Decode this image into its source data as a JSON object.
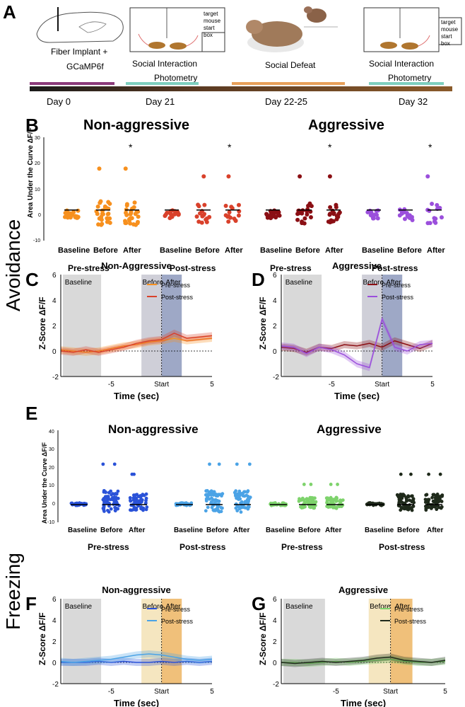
{
  "figure": {
    "panels": {
      "A": "A",
      "B": "B",
      "C": "C",
      "D": "D",
      "E": "E",
      "F": "F",
      "G": "G"
    },
    "side_labels": {
      "avoidance": "Avoidance",
      "freezing": "Freezing"
    },
    "colors": {
      "na_pre": "#f7901e",
      "na_post": "#d9412b",
      "ag_pre": "#8b0f14",
      "ag_post": "#9b4fdc",
      "fz_na_pre": "#2a52d8",
      "fz_na_post": "#4ba3e6",
      "fz_ag_pre": "#7ed36c",
      "fz_ag_post": "#1f2a1b"
    }
  },
  "timeline": {
    "step1": "Fiber Implant +",
    "step1b": "GCaMP6f",
    "step2": "Social Interaction",
    "step2b": "Photometry",
    "step3": "Social Defeat",
    "step4": "Social Interaction",
    "step4b": "Photometry",
    "box_label": [
      "target",
      "mouse",
      "start",
      "box"
    ],
    "days": [
      "Day 0",
      "Day 21",
      "Day 22-25",
      "Day 32"
    ]
  },
  "panelB": {
    "titles": [
      "Non-aggressive",
      "Aggressive"
    ],
    "ylabel": "Area Under the Curve ΔF/F",
    "yticks": [
      "30",
      "20",
      "10",
      "0",
      "-10"
    ],
    "cats": [
      "Baseline",
      "Before",
      "After"
    ],
    "groups": [
      "Pre-stress",
      "Post-stress",
      "Pre-stress",
      "Post-stress"
    ],
    "star": "*"
  },
  "chart_data": [
    {
      "type": "line",
      "panel": "C",
      "title": "Non-Aggressive",
      "xlabel": "Time (sec)",
      "ylabel": "Z-Score ΔF/F",
      "xlim": [
        -10,
        5
      ],
      "ylim": [
        -2,
        6
      ],
      "xticks": [
        "-5",
        "Start",
        "5"
      ],
      "yticks": [
        "6",
        "4",
        "2",
        "0",
        "-2"
      ],
      "regions": [
        "Baseline",
        "Before",
        "After"
      ],
      "series": [
        {
          "name": "Pre-stress",
          "values": [
            0.1,
            0.0,
            -0.1,
            0.0,
            0.2,
            0.4,
            0.5,
            0.7,
            0.8,
            1.0,
            0.8,
            0.9,
            1.0
          ]
        },
        {
          "name": "Post-stress",
          "values": [
            0.0,
            -0.1,
            0.1,
            -0.1,
            0.1,
            0.3,
            0.6,
            0.8,
            0.9,
            1.4,
            1.0,
            1.1,
            1.2
          ]
        }
      ]
    },
    {
      "type": "line",
      "panel": "D",
      "title": "Aggressive",
      "xlabel": "Time (sec)",
      "ylabel": "Z-Score ΔF/F",
      "xlim": [
        -10,
        5
      ],
      "ylim": [
        -2,
        6
      ],
      "xticks": [
        "-5",
        "Start",
        "5"
      ],
      "yticks": [
        "6",
        "4",
        "2",
        "0",
        "-2"
      ],
      "regions": [
        "Baseline",
        "Before",
        "After"
      ],
      "series": [
        {
          "name": "Pre-stress",
          "values": [
            0.3,
            0.2,
            -0.1,
            0.3,
            0.2,
            0.5,
            0.4,
            0.6,
            0.3,
            0.8,
            0.5,
            0.2,
            0.6
          ]
        },
        {
          "name": "Post-stress",
          "values": [
            0.4,
            0.3,
            -0.2,
            0.3,
            0.1,
            -0.3,
            -1.0,
            -1.3,
            2.5,
            0.3,
            0.0,
            0.5,
            0.6
          ]
        }
      ]
    },
    {
      "type": "line",
      "panel": "F",
      "title": "Non-aggressive",
      "xlabel": "Time (sec)",
      "ylabel": "Z-Score ΔF/F",
      "xlim": [
        -10,
        5
      ],
      "ylim": [
        -2,
        6
      ],
      "xticks": [
        "-5",
        "Start",
        "5"
      ],
      "yticks": [
        "6",
        "4",
        "2",
        "0",
        "-2"
      ],
      "regions": [
        "Baseline",
        "Before",
        "After"
      ],
      "series": [
        {
          "name": "Pre-stress",
          "values": [
            0.0,
            0.0,
            0.0,
            0.1,
            0.0,
            0.1,
            0.0,
            0.0,
            0.1,
            0.0,
            0.1,
            0.0,
            0.1
          ]
        },
        {
          "name": "Post-stress",
          "values": [
            0.1,
            0.0,
            0.1,
            0.2,
            0.3,
            0.5,
            0.7,
            0.8,
            0.7,
            0.5,
            0.3,
            0.2,
            0.3
          ]
        }
      ]
    },
    {
      "type": "line",
      "panel": "G",
      "title": "Aggressive",
      "xlabel": "Time (sec)",
      "ylabel": "Z-Score ΔF/F",
      "xlim": [
        -10,
        5
      ],
      "ylim": [
        -2,
        6
      ],
      "xticks": [
        "-5",
        "Start",
        "5"
      ],
      "yticks": [
        "6",
        "4",
        "2",
        "0",
        "-2"
      ],
      "regions": [
        "Baseline",
        "Before",
        "After"
      ],
      "series": [
        {
          "name": "Pre-stress",
          "values": [
            0.0,
            0.0,
            -0.1,
            0.0,
            0.1,
            0.0,
            0.1,
            0.2,
            0.3,
            0.1,
            0.0,
            0.0,
            0.1
          ]
        },
        {
          "name": "Post-stress",
          "values": [
            0.0,
            -0.1,
            0.0,
            0.1,
            0.0,
            0.1,
            0.2,
            0.4,
            0.5,
            0.2,
            0.1,
            0.0,
            0.2
          ]
        }
      ]
    }
  ],
  "panelE": {
    "titles": [
      "Non-aggressive",
      "Aggressive"
    ],
    "ylabel": "Area Under the Curve ΔF/F",
    "yticks": [
      "40",
      "30",
      "20",
      "10",
      "0",
      "-10"
    ],
    "cats": [
      "Baseline",
      "Before",
      "After"
    ],
    "groups": [
      "Pre-stress",
      "Post-stress",
      "Pre-stress",
      "Post-stress"
    ]
  }
}
